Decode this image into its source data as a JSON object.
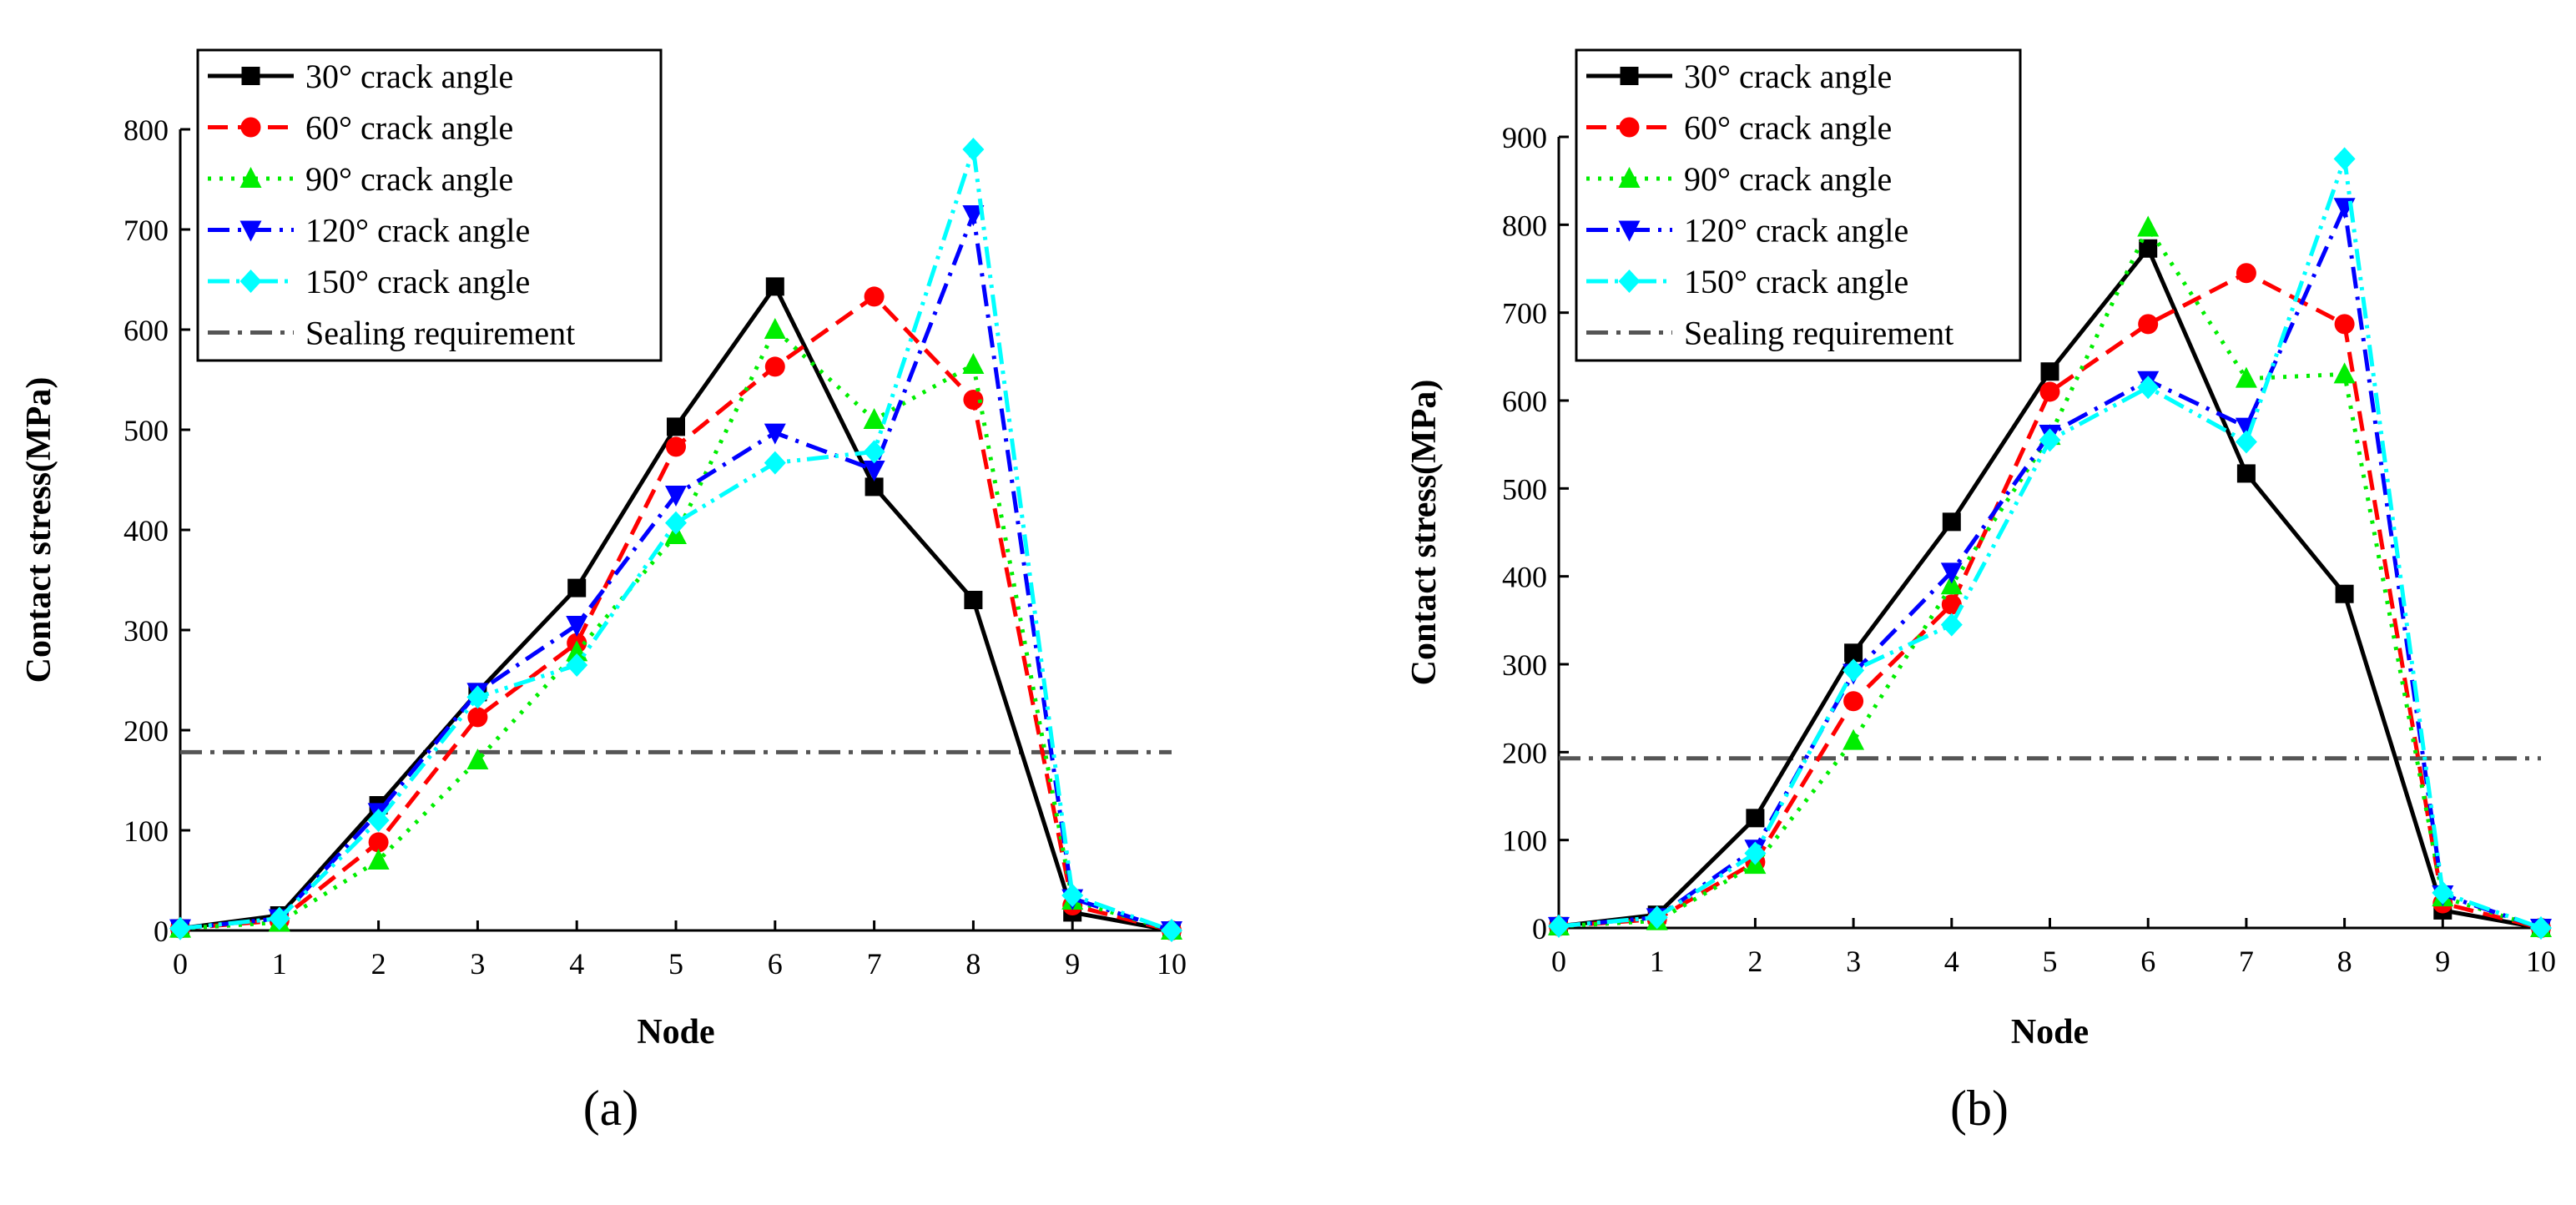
{
  "figure": {
    "description_labels": [
      "(a)",
      "(b)"
    ]
  },
  "colors": {
    "30": "#000000",
    "60": "#ff0000",
    "90": "#00ee00",
    "120": "#0000ff",
    "150": "#00ffff",
    "sealing": "#555555"
  },
  "chart_data": [
    {
      "type": "line",
      "panel_label": "(a)",
      "panel_letter": "a",
      "xlabel": "Node",
      "ylabel": "Contact stress(MPa)",
      "xlim": [
        0,
        10
      ],
      "ylim": [
        0,
        800
      ],
      "xticks": [
        0,
        1,
        2,
        3,
        4,
        5,
        6,
        7,
        8,
        9,
        10
      ],
      "yticks": [
        0,
        100,
        200,
        300,
        400,
        500,
        600,
        700,
        800
      ],
      "x": [
        0,
        1,
        2,
        3,
        4,
        5,
        6,
        7,
        8,
        9,
        10
      ],
      "legend_position": "top-left",
      "series": [
        {
          "key": "30",
          "name": "30° crack angle",
          "marker": "square",
          "dash": "solid",
          "values": [
            2,
            15,
            125,
            238,
            342,
            503,
            643,
            443,
            330,
            18,
            0
          ]
        },
        {
          "key": "60",
          "name": "60° crack angle",
          "marker": "circle",
          "dash": "dash",
          "values": [
            2,
            10,
            88,
            213,
            287,
            483,
            563,
            633,
            530,
            25,
            0
          ]
        },
        {
          "key": "90",
          "name": "90° crack angle",
          "marker": "triangle-up",
          "dash": "dot",
          "values": [
            2,
            8,
            70,
            170,
            278,
            395,
            600,
            510,
            565,
            30,
            0
          ]
        },
        {
          "key": "120",
          "name": "120° crack angle",
          "marker": "triangle-down",
          "dash": "dashdot",
          "values": [
            2,
            12,
            118,
            238,
            305,
            435,
            497,
            460,
            715,
            32,
            0
          ]
        },
        {
          "key": "150",
          "name": "150° crack angle",
          "marker": "diamond",
          "dash": "dashdotdot",
          "values": [
            2,
            12,
            110,
            233,
            265,
            407,
            467,
            478,
            780,
            35,
            0
          ]
        }
      ],
      "reference_line": {
        "name": "Sealing requirement",
        "value": 178
      }
    },
    {
      "type": "line",
      "panel_label": "(b)",
      "panel_letter": "b",
      "xlabel": "Node",
      "ylabel": "Contact stress(MPa)",
      "xlim": [
        0,
        10
      ],
      "ylim": [
        0,
        900
      ],
      "xticks": [
        0,
        1,
        2,
        3,
        4,
        5,
        6,
        7,
        8,
        9,
        10
      ],
      "yticks": [
        0,
        100,
        200,
        300,
        400,
        500,
        600,
        700,
        800,
        900
      ],
      "x": [
        0,
        1,
        2,
        3,
        4,
        5,
        6,
        7,
        8,
        9,
        10
      ],
      "legend_position": "top-left",
      "series": [
        {
          "key": "30",
          "name": "30° crack angle",
          "marker": "square",
          "dash": "solid",
          "values": [
            2,
            15,
            125,
            313,
            462,
            633,
            773,
            517,
            380,
            20,
            0
          ]
        },
        {
          "key": "60",
          "name": "60° crack angle",
          "marker": "circle",
          "dash": "dash",
          "values": [
            2,
            10,
            75,
            258,
            368,
            610,
            687,
            745,
            687,
            28,
            0
          ]
        },
        {
          "key": "90",
          "name": "90° crack angle",
          "marker": "triangle-up",
          "dash": "dot",
          "values": [
            2,
            8,
            72,
            213,
            390,
            560,
            797,
            625,
            630,
            35,
            0
          ]
        },
        {
          "key": "120",
          "name": "120° crack angle",
          "marker": "triangle-down",
          "dash": "dashdot",
          "values": [
            2,
            12,
            90,
            290,
            405,
            562,
            623,
            570,
            820,
            38,
            0
          ]
        },
        {
          "key": "150",
          "name": "150° crack angle",
          "marker": "diamond",
          "dash": "dashdotdot",
          "values": [
            2,
            12,
            85,
            293,
            345,
            555,
            615,
            553,
            875,
            40,
            0
          ]
        }
      ],
      "reference_line": {
        "name": "Sealing requirement",
        "value": 193
      }
    }
  ]
}
